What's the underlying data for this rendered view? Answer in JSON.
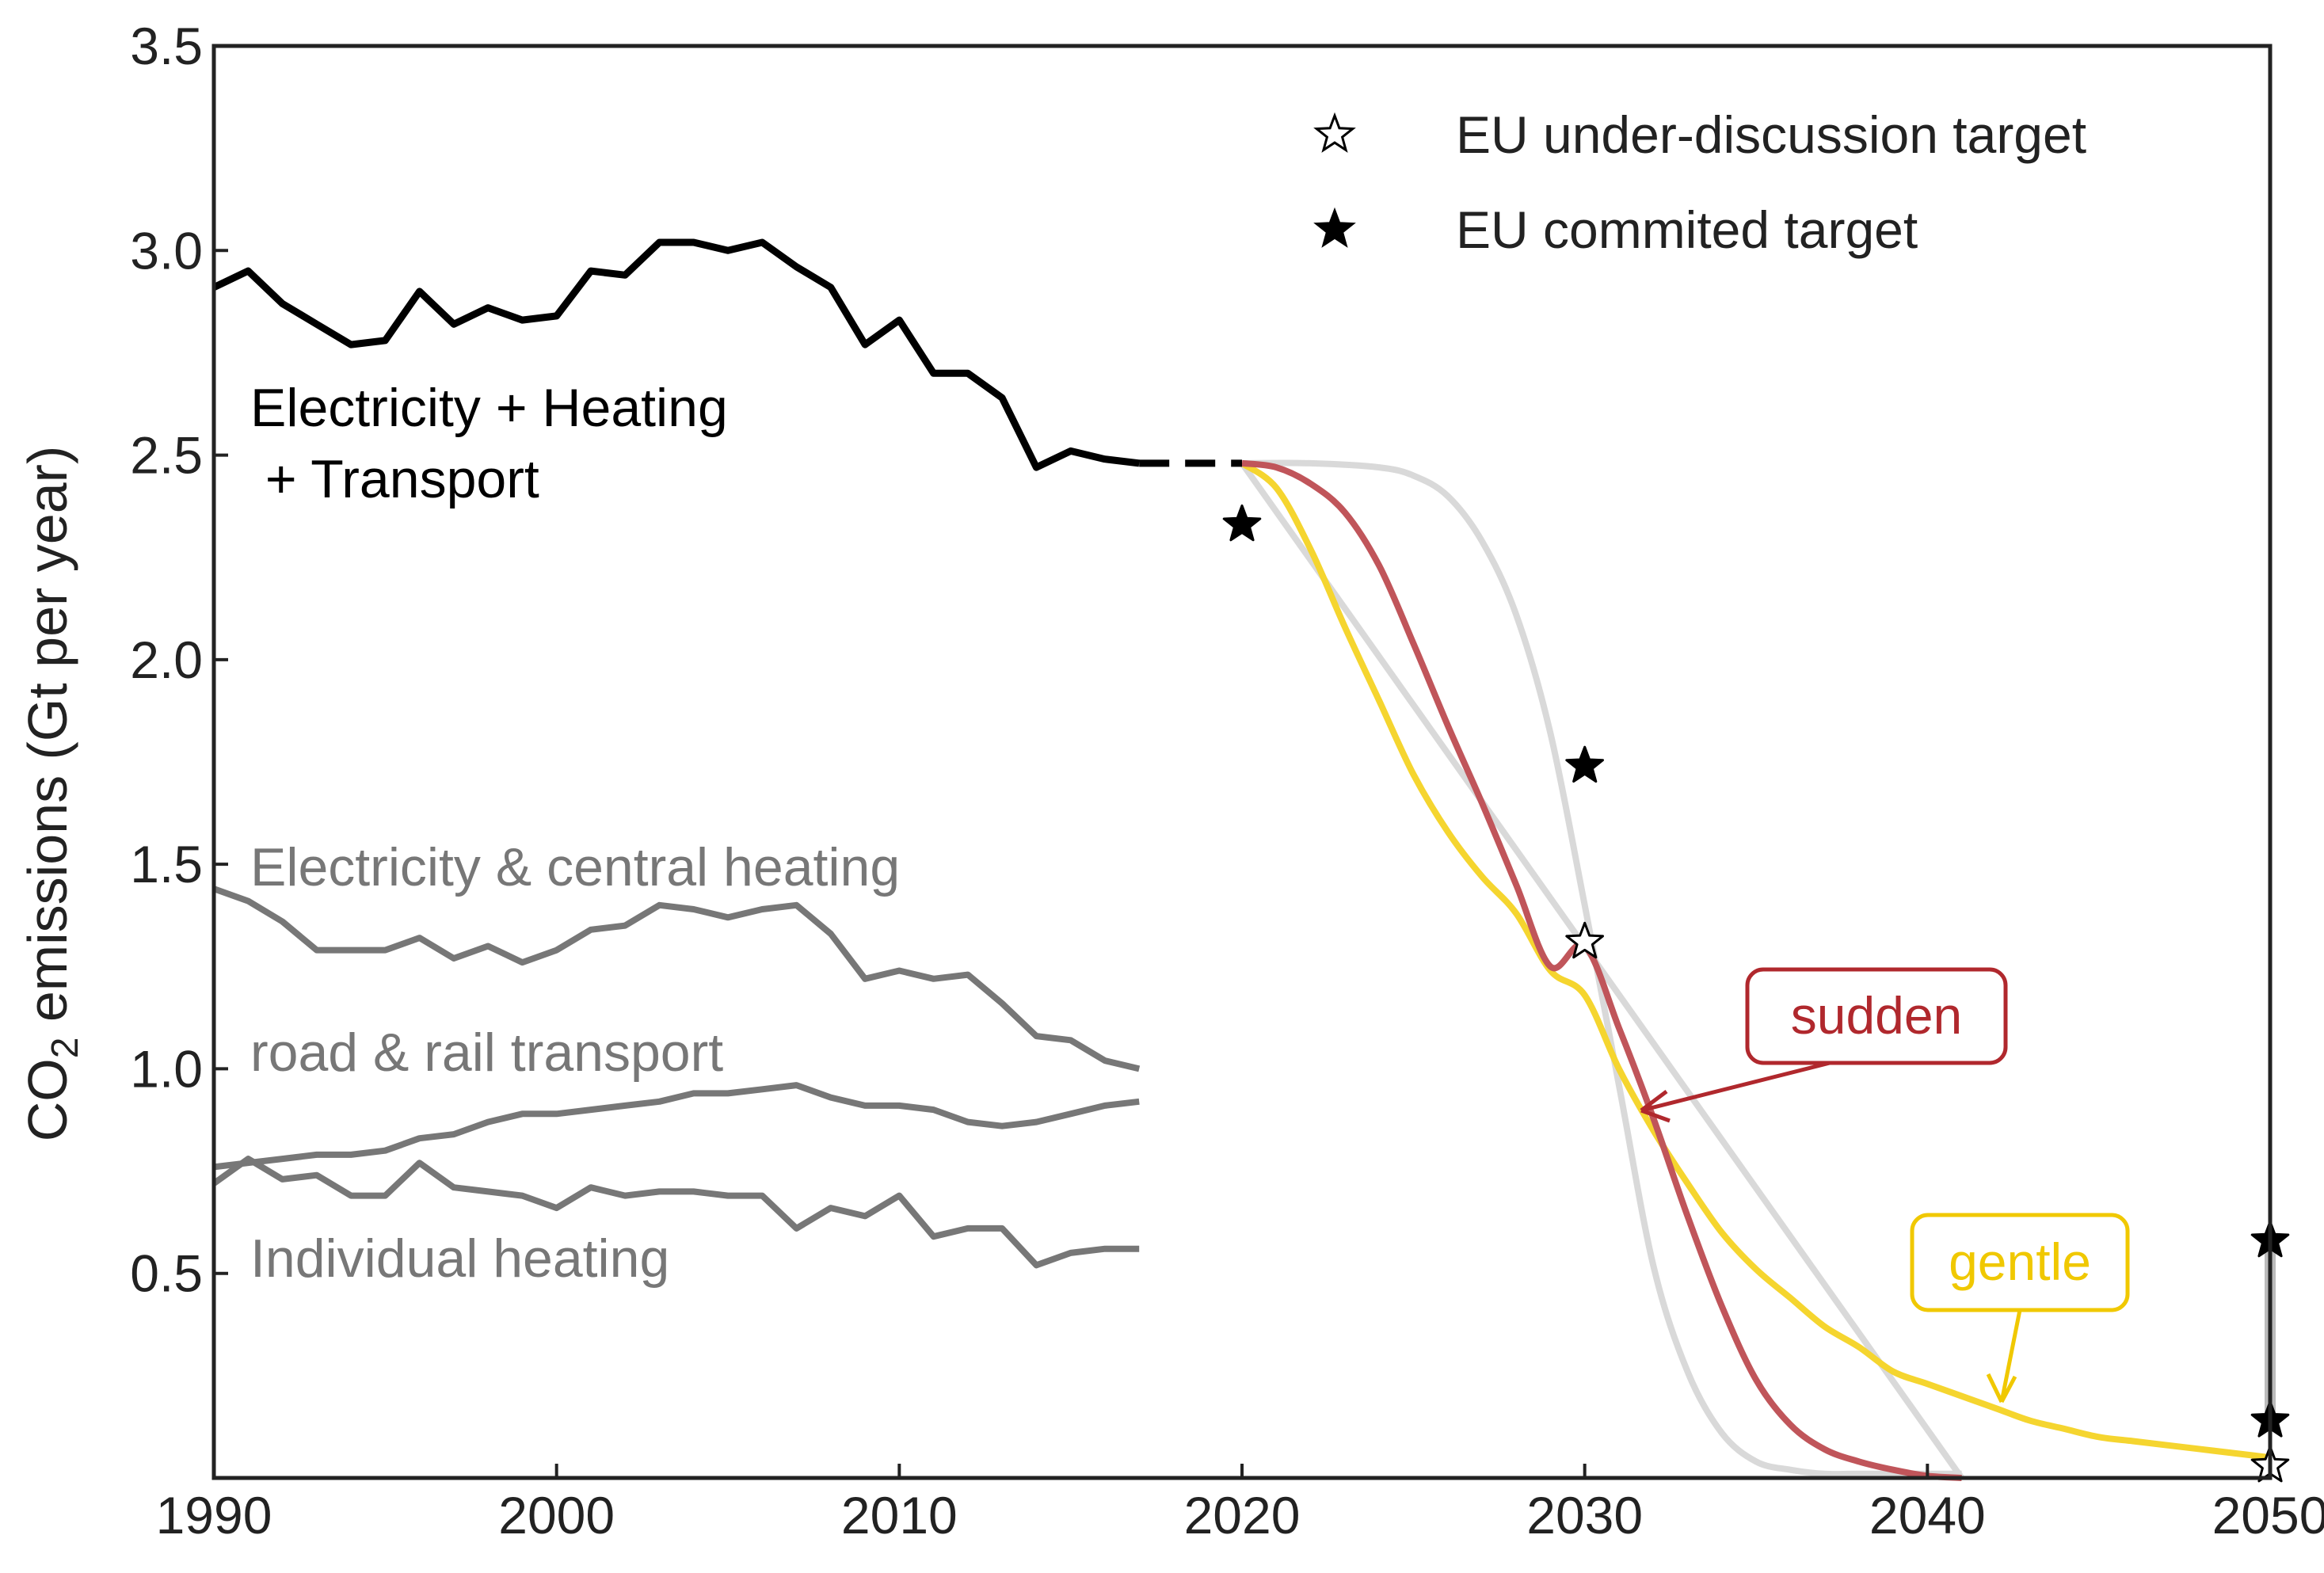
{
  "chart_data": {
    "type": "line",
    "xlim": [
      1990,
      2050
    ],
    "ylim": [
      0,
      3.5
    ],
    "x_ticks": [
      "1990",
      "2000",
      "2010",
      "2020",
      "2030",
      "2040",
      "2050"
    ],
    "y_ticks": [
      "0.5",
      "1.0",
      "1.5",
      "2.0",
      "2.5",
      "3.0",
      "3.5"
    ],
    "ylabel": "CO",
    "ylabel_sub": "2",
    "ylabel_rest": " emissions (Gt per year)",
    "grid": false,
    "legend_position": "top-right",
    "legend": [
      {
        "label": "EU under-discussion target",
        "marker": "open-star"
      },
      {
        "label": "EU commited target",
        "marker": "filled-star"
      }
    ],
    "colors": {
      "total": "#000000",
      "sectors": "#777777",
      "sudden": "#c0555a",
      "sudden_label": "#b0282d",
      "gentle": "#f5d52f",
      "gentle_label": "#f0c800",
      "alt_paths": "#d9d9d9",
      "target_range": "#bbbbbb"
    },
    "total_label_line1": "Electricity + Heating",
    "total_label_line2": " + Transport",
    "series": [
      {
        "key": "total",
        "x": [
          1990,
          1991,
          1992,
          1993,
          1994,
          1995,
          1996,
          1997,
          1998,
          1999,
          2000,
          2001,
          2002,
          2003,
          2004,
          2005,
          2006,
          2007,
          2008,
          2009,
          2010,
          2011,
          2012,
          2013,
          2014,
          2015,
          2016,
          2017
        ],
        "values": [
          2.91,
          2.95,
          2.87,
          2.82,
          2.77,
          2.78,
          2.9,
          2.82,
          2.86,
          2.83,
          2.84,
          2.95,
          2.94,
          3.02,
          3.02,
          3.0,
          3.02,
          2.96,
          2.91,
          2.77,
          2.83,
          2.7,
          2.7,
          2.64,
          2.47,
          2.51,
          2.49,
          2.48
        ]
      },
      {
        "key": "total_projected",
        "x": [
          2017,
          2020
        ],
        "values": [
          2.48,
          2.48
        ]
      },
      {
        "key": "electricity",
        "name": "Electricity & central heating",
        "x": [
          1990,
          1991,
          1992,
          1993,
          1994,
          1995,
          1996,
          1997,
          1998,
          1999,
          2000,
          2001,
          2002,
          2003,
          2004,
          2005,
          2006,
          2007,
          2008,
          2009,
          2010,
          2011,
          2012,
          2013,
          2014,
          2015,
          2016,
          2017
        ],
        "values": [
          1.44,
          1.41,
          1.36,
          1.29,
          1.29,
          1.29,
          1.32,
          1.27,
          1.3,
          1.26,
          1.29,
          1.34,
          1.35,
          1.4,
          1.39,
          1.37,
          1.39,
          1.4,
          1.33,
          1.22,
          1.24,
          1.22,
          1.23,
          1.16,
          1.08,
          1.07,
          1.02,
          1.0
        ]
      },
      {
        "key": "road",
        "name": "road & rail transport",
        "x": [
          1990,
          1991,
          1992,
          1993,
          1994,
          1995,
          1996,
          1997,
          1998,
          1999,
          2000,
          2001,
          2002,
          2003,
          2004,
          2005,
          2006,
          2007,
          2008,
          2009,
          2010,
          2011,
          2012,
          2013,
          2014,
          2015,
          2016,
          2017
        ],
        "values": [
          0.76,
          0.77,
          0.78,
          0.79,
          0.79,
          0.8,
          0.83,
          0.84,
          0.87,
          0.89,
          0.89,
          0.9,
          0.91,
          0.92,
          0.94,
          0.94,
          0.95,
          0.96,
          0.93,
          0.91,
          0.91,
          0.9,
          0.87,
          0.86,
          0.87,
          0.89,
          0.91,
          0.92
        ]
      },
      {
        "key": "individual",
        "name": "Individual heating",
        "x": [
          1990,
          1991,
          1992,
          1993,
          1994,
          1995,
          1996,
          1997,
          1998,
          1999,
          2000,
          2001,
          2002,
          2003,
          2004,
          2005,
          2006,
          2007,
          2008,
          2009,
          2010,
          2011,
          2012,
          2013,
          2014,
          2015,
          2016,
          2017
        ],
        "values": [
          0.72,
          0.78,
          0.73,
          0.74,
          0.69,
          0.69,
          0.77,
          0.71,
          0.7,
          0.69,
          0.66,
          0.71,
          0.69,
          0.7,
          0.7,
          0.69,
          0.69,
          0.61,
          0.66,
          0.64,
          0.69,
          0.59,
          0.61,
          0.61,
          0.52,
          0.55,
          0.56,
          0.56
        ]
      }
    ],
    "pathways": [
      {
        "key": "sudden",
        "name": "sudden",
        "x": [
          2020,
          2021,
          2022,
          2023,
          2024,
          2025,
          2026,
          2027,
          2028,
          2029,
          2030,
          2031,
          2032,
          2033,
          2034,
          2035,
          2036,
          2037,
          2038,
          2039,
          2040,
          2041
        ],
        "values": [
          2.48,
          2.47,
          2.43,
          2.36,
          2.23,
          2.04,
          1.84,
          1.65,
          1.45,
          1.25,
          1.3,
          1.1,
          0.88,
          0.64,
          0.42,
          0.24,
          0.13,
          0.07,
          0.04,
          0.02,
          0.005,
          0.0
        ]
      },
      {
        "key": "gentle",
        "name": "gentle",
        "x": [
          2020,
          2021,
          2022,
          2023,
          2024,
          2025,
          2026,
          2027,
          2028,
          2029,
          2030,
          2031,
          2032,
          2033,
          2034,
          2035,
          2036,
          2037,
          2038,
          2039,
          2040,
          2041,
          2042,
          2043,
          2044,
          2045,
          2046,
          2047,
          2048,
          2049,
          2050
        ],
        "values": [
          2.48,
          2.42,
          2.27,
          2.08,
          1.9,
          1.72,
          1.58,
          1.47,
          1.38,
          1.24,
          1.18,
          1.0,
          0.85,
          0.72,
          0.6,
          0.51,
          0.44,
          0.37,
          0.32,
          0.26,
          0.23,
          0.2,
          0.17,
          0.14,
          0.12,
          0.1,
          0.09,
          0.08,
          0.07,
          0.06,
          0.05
        ]
      },
      {
        "key": "steep",
        "x": [
          2020,
          2022,
          2024,
          2025,
          2026,
          2027,
          2028,
          2029,
          2030,
          2031,
          2032,
          2033,
          2034,
          2035,
          2036,
          2037,
          2038,
          2040,
          2041
        ],
        "values": [
          2.48,
          2.48,
          2.47,
          2.45,
          2.4,
          2.29,
          2.11,
          1.82,
          1.4,
          0.96,
          0.52,
          0.26,
          0.11,
          0.04,
          0.02,
          0.01,
          0.01,
          0.01,
          0.01
        ]
      },
      {
        "key": "linear",
        "x": [
          2020,
          2041
        ],
        "values": [
          2.48,
          0.0
        ]
      }
    ],
    "targets": [
      {
        "x": 2020,
        "y": 2.33,
        "marker": "filled-star"
      },
      {
        "x": 2030,
        "y": 1.74,
        "marker": "filled-star"
      },
      {
        "x": 2030,
        "y": 1.31,
        "marker": "open-star"
      },
      {
        "x": 2050,
        "y": 0.58,
        "marker": "filled-star"
      },
      {
        "x": 2050,
        "y": 0.14,
        "marker": "filled-star"
      },
      {
        "x": 2050,
        "y": 0.03,
        "marker": "open-star"
      }
    ],
    "target_range": {
      "x": 2050,
      "y_from": 0.14,
      "y_to": 0.58
    }
  }
}
